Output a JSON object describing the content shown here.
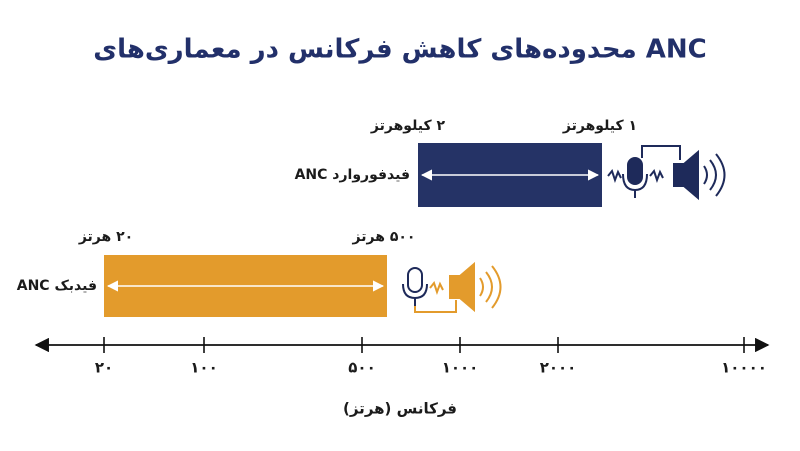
{
  "title": "محدوده‌های کاهش فرکانس در معماری‌های ANC",
  "bars": [
    {
      "name": "ANC فیدفوروارد",
      "left_label": "۲ کیلوهرتز",
      "right_label": "۱ کیلوهرتز"
    },
    {
      "name": "ANC فیدبک",
      "left_label": "۲۰ هرتز",
      "right_label": "۵۰۰ هرتز"
    }
  ],
  "axis": {
    "label": "فرکانس (هرتز)",
    "ticks": [
      "۲۰",
      "۱۰۰",
      "۵۰۰",
      "۱۰۰۰",
      "۲۰۰۰",
      "۱۰۰۰۰"
    ]
  }
}
